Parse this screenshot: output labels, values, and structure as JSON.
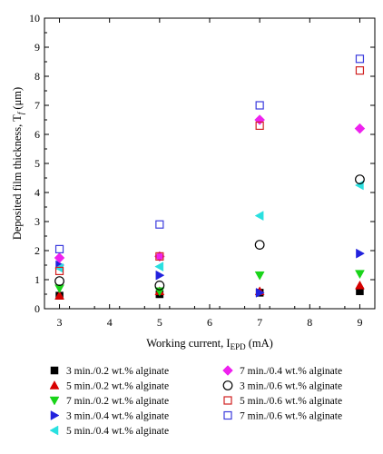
{
  "chart_data": {
    "type": "scatter",
    "xlabel": "Working current, I",
    "xlabel_subscript": "EPD",
    "xlabel_unit": " (mA)",
    "ylabel": "Deposited film thickness, T",
    "ylabel_subscript": "f",
    "ylabel_unit": " (μm)",
    "xlim": [
      2.7,
      9.3
    ],
    "ylim": [
      0,
      10
    ],
    "xticks": [
      3,
      4,
      5,
      6,
      7,
      8,
      9
    ],
    "yticks": [
      0,
      1,
      2,
      3,
      4,
      5,
      6,
      7,
      8,
      9,
      10
    ],
    "grid": false,
    "legend_position": "below",
    "x": [
      3,
      5,
      7,
      9
    ],
    "series": [
      {
        "name": "3 min./0.2 wt.% alginate",
        "marker": "square-filled",
        "color": "#000000",
        "values": [
          0.45,
          0.5,
          0.55,
          0.6
        ]
      },
      {
        "name": "5 min./0.2 wt.% alginate",
        "marker": "triangle-up-filled",
        "color": "#d80000",
        "values": [
          0.45,
          0.6,
          0.6,
          0.8
        ]
      },
      {
        "name": "7 min./0.2 wt.% alginate",
        "marker": "triangle-down-filled",
        "color": "#19d419",
        "values": [
          0.7,
          0.6,
          1.15,
          1.2
        ]
      },
      {
        "name": "3 min./0.4 wt.% alginate",
        "marker": "triangle-right-filled",
        "color": "#2222dd",
        "values": [
          1.5,
          1.15,
          0.55,
          1.9
        ]
      },
      {
        "name": "5 min./0.4 wt.% alginate",
        "marker": "triangle-left-filled",
        "color": "#2ae0e0",
        "values": [
          1.4,
          1.45,
          3.2,
          4.25
        ]
      },
      {
        "name": "7 min./0.4 wt.% alginate",
        "marker": "diamond-filled",
        "color": "#ee22ee",
        "values": [
          1.75,
          1.8,
          6.5,
          6.2
        ]
      },
      {
        "name": "3 min./0.6 wt.% alginate",
        "marker": "circle-open",
        "color": "#000000",
        "values": [
          0.95,
          0.8,
          2.2,
          4.45
        ]
      },
      {
        "name": "5 min./0.6 wt.% alginate",
        "marker": "square-open",
        "color": "#d02020",
        "values": [
          1.3,
          1.8,
          6.3,
          8.2
        ]
      },
      {
        "name": "7 min./0.6 wt.% alginate",
        "marker": "square-open",
        "color": "#3b3bdd",
        "values": [
          2.05,
          2.9,
          7.0,
          8.6
        ]
      }
    ]
  }
}
